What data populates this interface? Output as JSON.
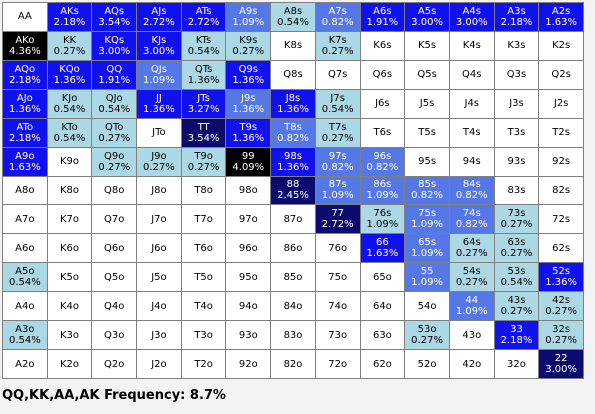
{
  "colors": {
    "w": "#ffffff",
    "l": "#acd8e6",
    "m": "#5677e6",
    "b": "#1111ee",
    "d": "#0b0b6e",
    "k": "#000000"
  },
  "grid": [
    [
      [
        "AA",
        "",
        "w"
      ],
      [
        "AKs",
        "2.18%",
        "b"
      ],
      [
        "AQs",
        "3.54%",
        "b"
      ],
      [
        "AJs",
        "2.72%",
        "b"
      ],
      [
        "ATs",
        "2.72%",
        "b"
      ],
      [
        "A9s",
        "1.09%",
        "m"
      ],
      [
        "A8s",
        "0.54%",
        "l"
      ],
      [
        "A7s",
        "0.82%",
        "m"
      ],
      [
        "A6s",
        "1.91%",
        "b"
      ],
      [
        "A5s",
        "3.00%",
        "b"
      ],
      [
        "A4s",
        "3.00%",
        "b"
      ],
      [
        "A3s",
        "2.18%",
        "b"
      ],
      [
        "A2s",
        "1.63%",
        "b"
      ]
    ],
    [
      [
        "AKo",
        "4.36%",
        "k"
      ],
      [
        "KK",
        "0.27%",
        "l"
      ],
      [
        "KQs",
        "3.00%",
        "b"
      ],
      [
        "KJs",
        "3.00%",
        "b"
      ],
      [
        "KTs",
        "0.54%",
        "l"
      ],
      [
        "K9s",
        "0.27%",
        "l"
      ],
      [
        "K8s",
        "",
        "w"
      ],
      [
        "K7s",
        "0.27%",
        "l"
      ],
      [
        "K6s",
        "",
        "w"
      ],
      [
        "K5s",
        "",
        "w"
      ],
      [
        "K4s",
        "",
        "w"
      ],
      [
        "K3s",
        "",
        "w"
      ],
      [
        "K2s",
        "",
        "w"
      ]
    ],
    [
      [
        "AQo",
        "2.18%",
        "b"
      ],
      [
        "KQo",
        "1.36%",
        "b"
      ],
      [
        "QQ",
        "1.91%",
        "b"
      ],
      [
        "QJs",
        "1.09%",
        "m"
      ],
      [
        "QTs",
        "1.36%",
        "l"
      ],
      [
        "Q9s",
        "1.36%",
        "b"
      ],
      [
        "Q8s",
        "",
        "w"
      ],
      [
        "Q7s",
        "",
        "w"
      ],
      [
        "Q6s",
        "",
        "w"
      ],
      [
        "Q5s",
        "",
        "w"
      ],
      [
        "Q4s",
        "",
        "w"
      ],
      [
        "Q3s",
        "",
        "w"
      ],
      [
        "Q2s",
        "",
        "w"
      ]
    ],
    [
      [
        "AJo",
        "1.36%",
        "b"
      ],
      [
        "KJo",
        "0.54%",
        "l"
      ],
      [
        "QJo",
        "0.54%",
        "l"
      ],
      [
        "JJ",
        "1.36%",
        "b"
      ],
      [
        "JTs",
        "3.27%",
        "b"
      ],
      [
        "J9s",
        "1.36%",
        "m"
      ],
      [
        "J8s",
        "1.36%",
        "b"
      ],
      [
        "J7s",
        "0.54%",
        "l"
      ],
      [
        "J6s",
        "",
        "w"
      ],
      [
        "J5s",
        "",
        "w"
      ],
      [
        "J4s",
        "",
        "w"
      ],
      [
        "J3s",
        "",
        "w"
      ],
      [
        "J2s",
        "",
        "w"
      ]
    ],
    [
      [
        "ATo",
        "2.18%",
        "b"
      ],
      [
        "KTo",
        "0.54%",
        "l"
      ],
      [
        "QTo",
        "0.27%",
        "l"
      ],
      [
        "JTo",
        "",
        "w"
      ],
      [
        "TT",
        "3.54%",
        "d"
      ],
      [
        "T9s",
        "1.36%",
        "b"
      ],
      [
        "T8s",
        "0.82%",
        "m"
      ],
      [
        "T7s",
        "0.27%",
        "l"
      ],
      [
        "T6s",
        "",
        "w"
      ],
      [
        "T5s",
        "",
        "w"
      ],
      [
        "T4s",
        "",
        "w"
      ],
      [
        "T3s",
        "",
        "w"
      ],
      [
        "T2s",
        "",
        "w"
      ]
    ],
    [
      [
        "A9o",
        "1.63%",
        "b"
      ],
      [
        "K9o",
        "",
        "w"
      ],
      [
        "Q9o",
        "0.27%",
        "l"
      ],
      [
        "J9o",
        "0.27%",
        "l"
      ],
      [
        "T9o",
        "0.27%",
        "l"
      ],
      [
        "99",
        "4.09%",
        "k"
      ],
      [
        "98s",
        "1.36%",
        "b"
      ],
      [
        "97s",
        "0.82%",
        "m"
      ],
      [
        "96s",
        "0.82%",
        "m"
      ],
      [
        "95s",
        "",
        "w"
      ],
      [
        "94s",
        "",
        "w"
      ],
      [
        "93s",
        "",
        "w"
      ],
      [
        "92s",
        "",
        "w"
      ]
    ],
    [
      [
        "A8o",
        "",
        "w"
      ],
      [
        "K8o",
        "",
        "w"
      ],
      [
        "Q8o",
        "",
        "w"
      ],
      [
        "J8o",
        "",
        "w"
      ],
      [
        "T8o",
        "",
        "w"
      ],
      [
        "98o",
        "",
        "w"
      ],
      [
        "88",
        "2.45%",
        "d"
      ],
      [
        "87s",
        "1.09%",
        "m"
      ],
      [
        "86s",
        "1.09%",
        "m"
      ],
      [
        "85s",
        "0.82%",
        "m"
      ],
      [
        "84s",
        "0.82%",
        "m"
      ],
      [
        "83s",
        "",
        "w"
      ],
      [
        "82s",
        "",
        "w"
      ]
    ],
    [
      [
        "A7o",
        "",
        "w"
      ],
      [
        "K7o",
        "",
        "w"
      ],
      [
        "Q7o",
        "",
        "w"
      ],
      [
        "J7o",
        "",
        "w"
      ],
      [
        "T7o",
        "",
        "w"
      ],
      [
        "97o",
        "",
        "w"
      ],
      [
        "87o",
        "",
        "w"
      ],
      [
        "77",
        "2.72%",
        "d"
      ],
      [
        "76s",
        "1.09%",
        "l"
      ],
      [
        "75s",
        "1.09%",
        "m"
      ],
      [
        "74s",
        "0.82%",
        "m"
      ],
      [
        "73s",
        "0.27%",
        "l"
      ],
      [
        "72s",
        "",
        "w"
      ]
    ],
    [
      [
        "A6o",
        "",
        "w"
      ],
      [
        "K6o",
        "",
        "w"
      ],
      [
        "Q6o",
        "",
        "w"
      ],
      [
        "J6o",
        "",
        "w"
      ],
      [
        "T6o",
        "",
        "w"
      ],
      [
        "96o",
        "",
        "w"
      ],
      [
        "86o",
        "",
        "w"
      ],
      [
        "76o",
        "",
        "w"
      ],
      [
        "66",
        "1.63%",
        "b"
      ],
      [
        "65s",
        "1.09%",
        "m"
      ],
      [
        "64s",
        "0.27%",
        "l"
      ],
      [
        "63s",
        "0.27%",
        "l"
      ],
      [
        "62s",
        "",
        "w"
      ]
    ],
    [
      [
        "A5o",
        "0.54%",
        "l"
      ],
      [
        "K5o",
        "",
        "w"
      ],
      [
        "Q5o",
        "",
        "w"
      ],
      [
        "J5o",
        "",
        "w"
      ],
      [
        "T5o",
        "",
        "w"
      ],
      [
        "95o",
        "",
        "w"
      ],
      [
        "85o",
        "",
        "w"
      ],
      [
        "75o",
        "",
        "w"
      ],
      [
        "65o",
        "",
        "w"
      ],
      [
        "55",
        "1.09%",
        "m"
      ],
      [
        "54s",
        "0.27%",
        "l"
      ],
      [
        "53s",
        "0.54%",
        "l"
      ],
      [
        "52s",
        "1.36%",
        "b"
      ]
    ],
    [
      [
        "A4o",
        "",
        "w"
      ],
      [
        "K4o",
        "",
        "w"
      ],
      [
        "Q4o",
        "",
        "w"
      ],
      [
        "J4o",
        "",
        "w"
      ],
      [
        "T4o",
        "",
        "w"
      ],
      [
        "94o",
        "",
        "w"
      ],
      [
        "84o",
        "",
        "w"
      ],
      [
        "74o",
        "",
        "w"
      ],
      [
        "64o",
        "",
        "w"
      ],
      [
        "54o",
        "",
        "w"
      ],
      [
        "44",
        "1.09%",
        "m"
      ],
      [
        "43s",
        "0.27%",
        "l"
      ],
      [
        "42s",
        "0.27%",
        "l"
      ]
    ],
    [
      [
        "A3o",
        "0.54%",
        "l"
      ],
      [
        "K3o",
        "",
        "w"
      ],
      [
        "Q3o",
        "",
        "w"
      ],
      [
        "J3o",
        "",
        "w"
      ],
      [
        "T3o",
        "",
        "w"
      ],
      [
        "93o",
        "",
        "w"
      ],
      [
        "83o",
        "",
        "w"
      ],
      [
        "73o",
        "",
        "w"
      ],
      [
        "63o",
        "",
        "w"
      ],
      [
        "53o",
        "0.27%",
        "l"
      ],
      [
        "43o",
        "",
        "w"
      ],
      [
        "33",
        "2.18%",
        "b"
      ],
      [
        "32s",
        "0.27%",
        "l"
      ]
    ],
    [
      [
        "A2o",
        "",
        "w"
      ],
      [
        "K2o",
        "",
        "w"
      ],
      [
        "Q2o",
        "",
        "w"
      ],
      [
        "J2o",
        "",
        "w"
      ],
      [
        "T2o",
        "",
        "w"
      ],
      [
        "92o",
        "",
        "w"
      ],
      [
        "82o",
        "",
        "w"
      ],
      [
        "72o",
        "",
        "w"
      ],
      [
        "62o",
        "",
        "w"
      ],
      [
        "52o",
        "",
        "w"
      ],
      [
        "42o",
        "",
        "w"
      ],
      [
        "32o",
        "",
        "w"
      ],
      [
        "22",
        "3.00%",
        "d"
      ]
    ]
  ],
  "footer": {
    "text": "QQ,KK,AA,AK Frequency: 8.7%"
  }
}
